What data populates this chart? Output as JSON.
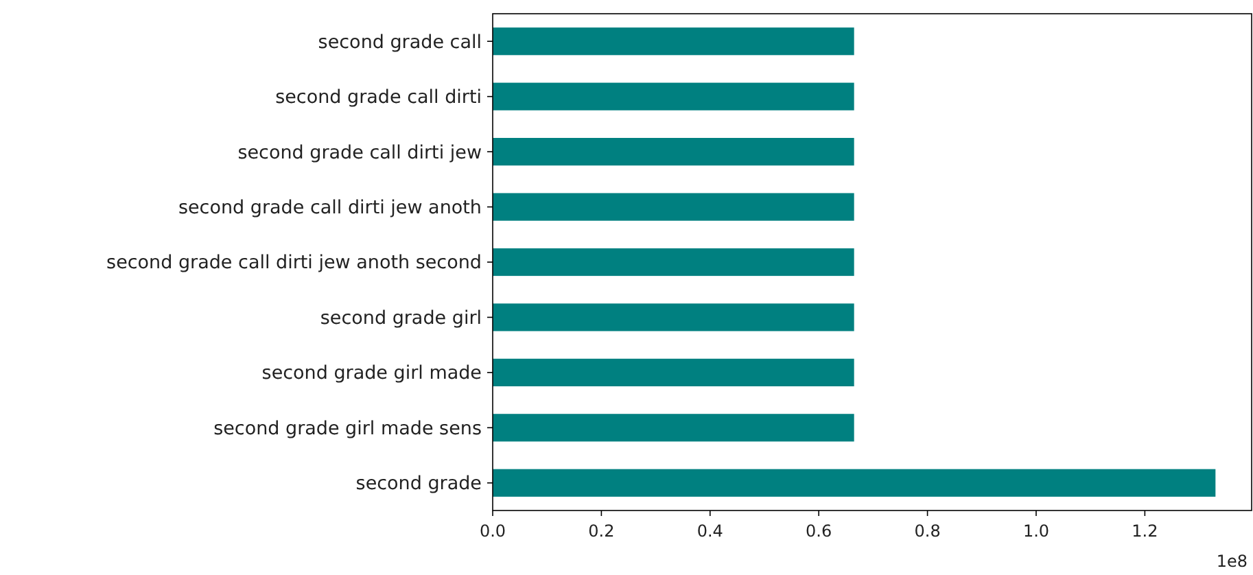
{
  "chart_data": {
    "type": "bar",
    "orientation": "horizontal",
    "categories": [
      "second grade call",
      "second grade call dirti",
      "second grade call dirti jew",
      "second grade call dirti jew anoth",
      "second grade call dirti jew anoth second",
      "second grade girl",
      "second grade girl made",
      "second grade girl made sens",
      "second grade"
    ],
    "values": [
      0.665,
      0.665,
      0.665,
      0.665,
      0.665,
      0.665,
      0.665,
      0.665,
      1.33
    ],
    "color": "#008080",
    "xlim": [
      0,
      1.3965
    ],
    "xticks": [
      {
        "value": 0,
        "label": "0.0"
      },
      {
        "value": 0.2,
        "label": "0.2"
      },
      {
        "value": 0.4,
        "label": "0.4"
      },
      {
        "value": 0.6,
        "label": "0.6"
      },
      {
        "value": 0.8,
        "label": "0.8"
      },
      {
        "value": 1,
        "label": "1.0"
      },
      {
        "value": 1.2,
        "label": "1.2"
      }
    ],
    "annotations": [
      "1e8"
    ],
    "grid": false
  }
}
